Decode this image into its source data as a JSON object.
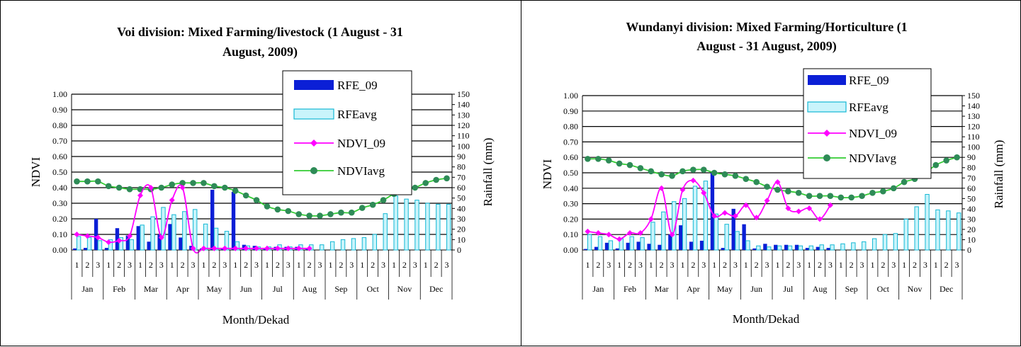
{
  "colors": {
    "rfe_09": "#0b1fd6",
    "rfe_avg": "#c9f4fb",
    "rfe_avg_border": "#14b8d4",
    "ndvi_09": "#ff00ff",
    "ndvi_avg_line": "#33cc33",
    "ndvi_avg_marker": "#2e8b57",
    "grid": "#000000"
  },
  "chart_data": [
    {
      "type": "bar",
      "title": "Voi division: Mixed Farming/livestock (1 August - 31 August, 2009)",
      "title_lines": [
        "Voi division: Mixed Farming/livestock (1 August - 31",
        "August, 2009)"
      ],
      "xlabel": "Month/Dekad",
      "ylabel": "NDVI",
      "y2label": "Rainfall (mm)",
      "ylim": [
        0,
        1.0
      ],
      "y2lim": [
        0,
        150
      ],
      "yticks": [
        "0.00",
        "0.10",
        "0.20",
        "0.30",
        "0.40",
        "0.50",
        "0.60",
        "0.70",
        "0.80",
        "0.90",
        "1.00"
      ],
      "y2ticks": [
        "0",
        "10",
        "20",
        "30",
        "40",
        "50",
        "60",
        "70",
        "80",
        "90",
        "100",
        "110",
        "120",
        "130",
        "140",
        "150"
      ],
      "months": [
        "Jan",
        "Feb",
        "Mar",
        "Apr",
        "May",
        "Jun",
        "Jul",
        "Aug",
        "Sep",
        "Oct",
        "Nov",
        "Dec"
      ],
      "dekads": [
        "1",
        "2",
        "3"
      ],
      "grid": true,
      "legend": "top-center",
      "series": [
        {
          "name": "RFE_09",
          "kind": "bar",
          "axis": "right",
          "values": [
            1.5,
            2,
            30,
            2,
            21,
            14,
            23,
            8,
            15,
            25,
            12,
            4,
            1.5,
            58,
            2,
            56,
            5,
            4,
            1.5,
            3,
            3,
            3,
            2,
            null,
            null,
            null,
            null,
            null,
            null,
            null,
            null,
            null,
            null,
            null,
            null,
            null
          ]
        },
        {
          "name": "RFEavg",
          "kind": "bar",
          "axis": "right",
          "values": [
            13,
            12,
            9,
            10,
            12,
            10,
            24,
            32,
            41,
            34,
            37,
            39,
            25,
            21,
            18,
            8,
            4,
            3,
            3,
            5,
            3,
            5,
            5,
            5,
            8,
            10,
            11,
            12,
            15,
            35,
            52,
            49,
            48,
            45,
            44,
            44
          ]
        },
        {
          "name": "NDVI_09",
          "kind": "line",
          "axis": "left",
          "values": [
            0.1,
            0.09,
            0.08,
            0.05,
            0.06,
            0.09,
            0.35,
            0.4,
            0.08,
            0.32,
            0.4,
            0.01,
            0.01,
            0.01,
            0.01,
            0.01,
            0.01,
            0.01,
            0.01,
            0.01,
            0.01,
            0.01,
            0.01,
            null,
            null,
            null,
            null,
            null,
            null,
            null,
            null,
            null,
            null,
            null,
            null,
            null
          ]
        },
        {
          "name": "NDVIavg",
          "kind": "line",
          "axis": "left",
          "values": [
            0.44,
            0.44,
            0.44,
            0.41,
            0.4,
            0.39,
            0.39,
            0.39,
            0.4,
            0.42,
            0.43,
            0.43,
            0.43,
            0.41,
            0.4,
            0.38,
            0.35,
            0.32,
            0.28,
            0.26,
            0.25,
            0.23,
            0.22,
            0.22,
            0.23,
            0.24,
            0.24,
            0.27,
            0.29,
            0.32,
            0.36,
            0.38,
            0.4,
            0.43,
            0.45,
            0.46
          ]
        }
      ]
    },
    {
      "type": "bar",
      "title": "Wundanyi division: Mixed Farming/Horticulture (1 August - 31 August, 2009)",
      "title_lines": [
        "Wundanyi division: Mixed Farming/Horticulture (1",
        "August - 31 August, 2009)"
      ],
      "xlabel": "Month/Dekad",
      "ylabel": "NDVI",
      "y2label": "Rainfall (mm)",
      "ylim": [
        0,
        1.0
      ],
      "y2lim": [
        0,
        150
      ],
      "yticks": [
        "0.00",
        "0.10",
        "0.20",
        "0.30",
        "0.40",
        "0.50",
        "0.60",
        "0.70",
        "0.80",
        "0.90",
        "1.00"
      ],
      "y2ticks": [
        "0",
        "10",
        "20",
        "30",
        "40",
        "50",
        "60",
        "70",
        "80",
        "90",
        "100",
        "110",
        "120",
        "130",
        "140",
        "150"
      ],
      "months": [
        "Jan",
        "Feb",
        "Mar",
        "Apr",
        "May",
        "Jun",
        "Jul",
        "Aug",
        "Sep",
        "Oct",
        "Nov",
        "Dec"
      ],
      "dekads": [
        "1",
        "2",
        "3"
      ],
      "grid": true,
      "legend": "top-right",
      "series": [
        {
          "name": "RFE_09",
          "kind": "bar",
          "axis": "right",
          "values": [
            1,
            3,
            7,
            1.5,
            7,
            8,
            6,
            5,
            15,
            24,
            8,
            9,
            75,
            2,
            40,
            25,
            1.5,
            6,
            5,
            5,
            5,
            2,
            3,
            2,
            null,
            null,
            null,
            null,
            null,
            null,
            null,
            null,
            null,
            null,
            null,
            null
          ]
        },
        {
          "name": "RFEavg",
          "kind": "bar",
          "axis": "right",
          "values": [
            15,
            13,
            9,
            11,
            13,
            12,
            27,
            37,
            47,
            50,
            62,
            67,
            35,
            25,
            18,
            9,
            4,
            3,
            4,
            4,
            4,
            4,
            5,
            5,
            6,
            7,
            8,
            11,
            15,
            16,
            30,
            42,
            54,
            39,
            38,
            36
          ]
        },
        {
          "name": "NDVI_09",
          "kind": "line",
          "axis": "left",
          "values": [
            0.12,
            0.11,
            0.1,
            0.07,
            0.11,
            0.11,
            0.2,
            0.4,
            0.1,
            0.39,
            0.45,
            0.37,
            0.22,
            0.24,
            0.22,
            0.29,
            0.21,
            0.32,
            0.44,
            0.27,
            0.25,
            0.27,
            0.2,
            0.29,
            null,
            null,
            null,
            null,
            null,
            null,
            null,
            null,
            null,
            null,
            null,
            null
          ]
        },
        {
          "name": "NDVIavg",
          "kind": "line",
          "axis": "left",
          "values": [
            0.59,
            0.59,
            0.58,
            0.56,
            0.55,
            0.53,
            0.51,
            0.49,
            0.48,
            0.51,
            0.52,
            0.52,
            0.5,
            0.49,
            0.48,
            0.46,
            0.44,
            0.41,
            0.39,
            0.38,
            0.37,
            0.35,
            0.35,
            0.35,
            0.34,
            0.34,
            0.35,
            0.37,
            0.38,
            0.4,
            0.44,
            0.46,
            0.5,
            0.55,
            0.58,
            0.6
          ]
        }
      ]
    }
  ]
}
